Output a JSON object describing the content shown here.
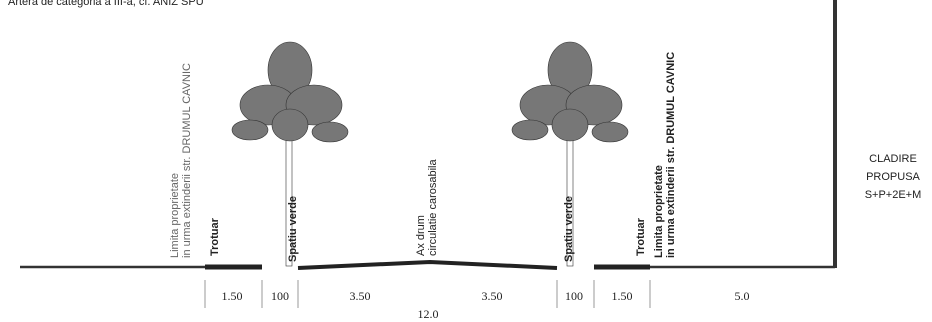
{
  "header": {
    "title": "Artera de categoria a III-a, cf. ANIZ SPU"
  },
  "labels": {
    "left_limit": [
      "Limita proprietate",
      "in urma extinderii str. DRUMUL CAVNIC"
    ],
    "left_sidewalk": "Trotuar",
    "left_green": "Spatiu verde",
    "axis": [
      "Ax drum",
      "circulatie carosabila"
    ],
    "right_green": "Spatiu verde",
    "right_sidewalk": "Trotuar",
    "right_limit": [
      "Limita proprietate",
      "in urma extinderii str. DRUMUL CAVNIC"
    ]
  },
  "building": {
    "lines": [
      "CLADIRE",
      "PROPUSA",
      "S+P+2E+M"
    ]
  },
  "dimensions": [
    "1.50",
    "100",
    "3.50",
    "3.50",
    "100",
    "1.50",
    "5.0"
  ],
  "total": "12.0"
}
